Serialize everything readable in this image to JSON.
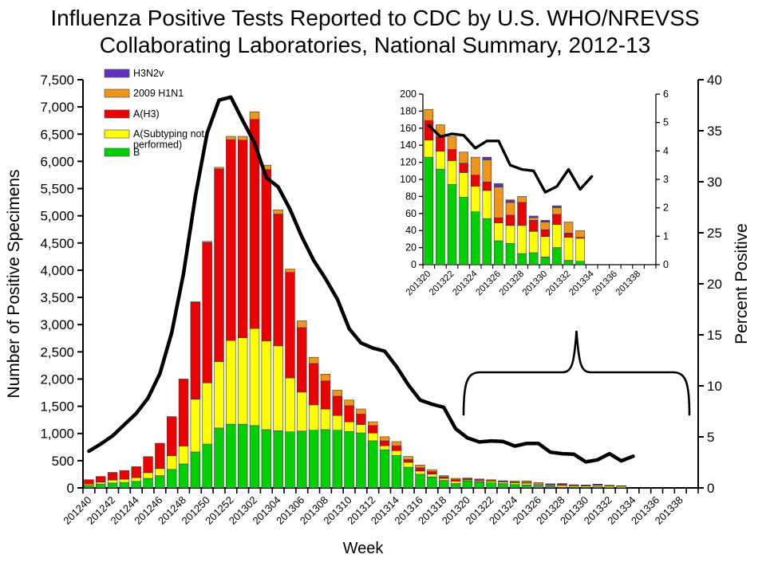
{
  "title": {
    "line1": "Influenza Positive Tests Reported to CDC by U.S. WHO/NREVSS",
    "line2": "Collaborating Laboratories, National Summary, 2012-13"
  },
  "axes": {
    "left_label": "Number of Positive Specimens",
    "right_label": "Percent Positive",
    "x_label": "Week"
  },
  "legend": [
    {
      "label": "H3N2v",
      "label_lines": [
        "H3N2v"
      ],
      "color": "#6633CC",
      "dotted": true
    },
    {
      "label": "2009 H1N1",
      "label_lines": [
        "2009 H1N1"
      ],
      "color": "#FF9E1B",
      "dotted": true
    },
    {
      "label": "A(H3)",
      "label_lines": [
        "A(H3)"
      ],
      "color": "#EC0000",
      "dotted": false
    },
    {
      "label": "A(Subtyping not performed)",
      "label_lines": [
        "A(Subtyping not",
        "performed)"
      ],
      "color": "#FFFF00",
      "dotted": false
    },
    {
      "label": "B",
      "label_lines": [
        "B"
      ],
      "color": "#00CF00",
      "dotted": false
    }
  ],
  "chart_data": {
    "type": "bar",
    "subtype": "stacked-bar-with-line-overlay",
    "title": "Influenza Positive Tests Reported to CDC by U.S. WHO/NREVSS Collaborating Laboratories, National Summary, 2012-13",
    "xlabel": "Week",
    "ylabel_left": "Number of Positive Specimens",
    "ylabel_right": "Percent Positive",
    "ylim_left": [
      0,
      7500
    ],
    "ytick_step_left": 500,
    "ylim_right": [
      0,
      40
    ],
    "ytick_step_right": 5,
    "x_tick_label_every": 2,
    "grid": "off",
    "legend_position": "top-left-inside",
    "weeks": [
      "201240",
      "201241",
      "201242",
      "201243",
      "201244",
      "201245",
      "201246",
      "201247",
      "201248",
      "201249",
      "201250",
      "201251",
      "201252",
      "201301",
      "201302",
      "201303",
      "201304",
      "201305",
      "201306",
      "201307",
      "201308",
      "201309",
      "201310",
      "201311",
      "201312",
      "201313",
      "201314",
      "201315",
      "201316",
      "201317",
      "201318",
      "201319",
      "201320",
      "201321",
      "201322",
      "201323",
      "201324",
      "201325",
      "201326",
      "201327",
      "201328",
      "201329",
      "201330",
      "201331",
      "201332",
      "201333",
      "201334",
      "201335",
      "201336",
      "201337",
      "201338",
      "201339"
    ],
    "series": [
      {
        "name": "B",
        "color": "#00CF00",
        "dotted": false,
        "values": [
          45,
          70,
          90,
          100,
          120,
          175,
          225,
          340,
          440,
          660,
          805,
          1100,
          1170,
          1170,
          1145,
          1070,
          1050,
          1030,
          1045,
          1060,
          1070,
          1060,
          1035,
          1010,
          865,
          700,
          595,
          380,
          250,
          200,
          137,
          80,
          126,
          112,
          94,
          79,
          62,
          54,
          28,
          25,
          13,
          14,
          9,
          20,
          5,
          4,
          0,
          0,
          0,
          0,
          0,
          0
        ]
      },
      {
        "name": "A(Subtyping not performed)",
        "color": "#FFFF00",
        "dotted": false,
        "values": [
          25,
          35,
          55,
          60,
          70,
          105,
          130,
          250,
          330,
          970,
          1125,
          1220,
          1540,
          1590,
          1785,
          1630,
          1560,
          990,
          715,
          465,
          380,
          270,
          180,
          155,
          145,
          75,
          90,
          90,
          60,
          55,
          38,
          45,
          20,
          21,
          28,
          29,
          30,
          33,
          21,
          21,
          33,
          25,
          24,
          27,
          27,
          27,
          0,
          0,
          0,
          0,
          0,
          0
        ]
      },
      {
        "name": "A(H3)",
        "color": "#EC0000",
        "dotted": false,
        "values": [
          80,
          105,
          140,
          160,
          200,
          295,
          465,
          720,
          1225,
          1780,
          2580,
          3540,
          3690,
          3630,
          3840,
          3150,
          2420,
          1940,
          1185,
          760,
          515,
          355,
          295,
          190,
          135,
          90,
          90,
          50,
          60,
          45,
          30,
          28,
          23,
          17,
          13,
          11,
          13,
          10,
          6,
          12,
          27,
          13,
          8,
          12,
          5,
          1,
          0,
          0,
          0,
          0,
          0,
          0
        ]
      },
      {
        "name": "2009 H1N1",
        "color": "#FF9E1B",
        "dotted": true,
        "values": [
          0,
          0,
          0,
          0,
          0,
          0,
          0,
          0,
          5,
          10,
          20,
          30,
          60,
          70,
          140,
          80,
          80,
          60,
          125,
          115,
          125,
          110,
          105,
          95,
          70,
          75,
          75,
          58,
          50,
          35,
          20,
          23,
          13,
          14,
          15,
          13,
          21,
          26,
          36,
          15,
          7,
          3,
          9,
          8,
          13,
          8,
          0,
          0,
          0,
          0,
          0,
          0
        ]
      },
      {
        "name": "H3N2v",
        "color": "#6633CC",
        "dotted": true,
        "values": [
          0,
          0,
          0,
          0,
          0,
          0,
          0,
          0,
          0,
          0,
          0,
          0,
          0,
          0,
          0,
          0,
          0,
          0,
          0,
          0,
          0,
          0,
          0,
          0,
          0,
          0,
          0,
          0,
          0,
          0,
          0,
          0,
          0,
          0,
          0,
          0,
          0,
          3,
          4,
          3,
          0,
          2,
          2,
          2,
          0,
          0,
          0,
          0,
          0,
          0,
          0,
          0
        ]
      }
    ],
    "line": {
      "name": "Percent Positive",
      "color": "#000000",
      "values": [
        3.6,
        4.3,
        5.1,
        6.2,
        7.3,
        8.8,
        11.2,
        15.2,
        21.0,
        28.6,
        34.8,
        38.0,
        38.3,
        36.0,
        33.8,
        30.4,
        29.5,
        27.3,
        24.6,
        22.3,
        20.5,
        18.5,
        15.6,
        14.2,
        13.7,
        13.4,
        11.9,
        10.1,
        8.6,
        8.2,
        7.9,
        5.8,
        4.9,
        4.5,
        4.6,
        4.55,
        4.1,
        4.35,
        4.35,
        3.5,
        3.35,
        3.3,
        2.55,
        2.75,
        3.35,
        2.65,
        3.1,
        null,
        null,
        null,
        null,
        null
      ]
    },
    "inset": {
      "description": "Zoomed view of end-of-season weeks, indicated by brace",
      "weeks_start_index": 32,
      "slots": 20,
      "ylim_left": [
        0,
        200
      ],
      "ytick_step_left": 20,
      "ylim_right": [
        0,
        6
      ],
      "ytick_step_right": 1,
      "x_tick_label_every": 2
    }
  }
}
